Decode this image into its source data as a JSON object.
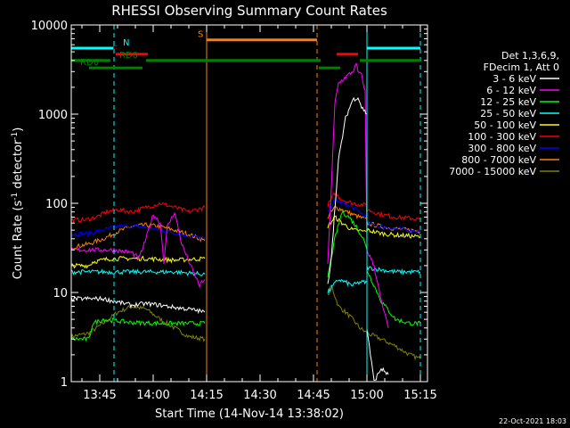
{
  "chart_data": {
    "type": "line",
    "title": "RHESSI Observing Summary Count Rates",
    "xlabel": "Start Time (14-Nov-14 13:38:02)",
    "ylabel_main": "Count Rate (s",
    "ylabel_sup1": "-1",
    "ylabel_mid": " detector",
    "ylabel_sup2": "-1",
    "ylabel_end": ")",
    "y_scale": "log",
    "ylim": [
      1,
      10000
    ],
    "xlim_minutes": [
      -1,
      99
    ],
    "x_ticks": [
      {
        "m": 7,
        "label": "13:45"
      },
      {
        "m": 22,
        "label": "14:00"
      },
      {
        "m": 37,
        "label": "14:15"
      },
      {
        "m": 52,
        "label": "14:30"
      },
      {
        "m": 67,
        "label": "14:45"
      },
      {
        "m": 82,
        "label": "15:00"
      },
      {
        "m": 97,
        "label": "15:15"
      }
    ],
    "y_ticks": [
      {
        "v": 1,
        "label": "1"
      },
      {
        "v": 10,
        "label": "10"
      },
      {
        "v": 100,
        "label": "100"
      },
      {
        "v": 1000,
        "label": "1000"
      },
      {
        "v": 10000,
        "label": "10000"
      }
    ],
    "legend_header": [
      "Det 1,3,6,9,",
      "FDecim 1, Att 0"
    ],
    "legend_placement": "right",
    "series": [
      {
        "name": "3 - 6 keV",
        "color": "#ffffff",
        "segments": [
          {
            "x": [
              -1,
              3,
              8,
              12,
              16,
              20,
              24,
              28,
              32,
              35,
              36.5
            ],
            "y": [
              8.5,
              8.5,
              8.5,
              7.8,
              7.2,
              7.5,
              7.2,
              6.8,
              6.5,
              6.2,
              6.0
            ]
          },
          {
            "x": [
              71,
              72,
              74,
              76,
              78,
              79.5,
              80.5,
              82
            ],
            "y": [
              12,
              25,
              300,
              900,
              1450,
              1550,
              1200,
              1000
            ]
          },
          {
            "x": [
              82,
              83,
              84,
              86,
              88
            ],
            "y": [
              4,
              2,
              1,
              1.4,
              1.2
            ]
          }
        ]
      },
      {
        "name": "6 - 12 keV",
        "color": "#ff00ff",
        "segments": [
          {
            "x": [
              -1,
              8,
              11,
              16,
              18,
              20,
              22,
              24,
              25,
              26,
              28,
              30,
              33,
              35,
              36.5
            ],
            "y": [
              30,
              30,
              30,
              28,
              24,
              40,
              75,
              60,
              22,
              55,
              80,
              35,
              18,
              12,
              14
            ]
          },
          {
            "x": [
              71,
              72,
              73,
              74,
              76,
              78,
              79,
              79.5,
              80.5,
              81.5,
              82
            ],
            "y": [
              20,
              150,
              1300,
              2200,
              2600,
              3000,
              3600,
              3000,
              2700,
              1800,
              30
            ]
          },
          {
            "x": [
              82,
              84,
              86,
              88
            ],
            "y": [
              30,
              20,
              8,
              4
            ]
          }
        ]
      },
      {
        "name": "12 - 25 keV",
        "color": "#00ff00",
        "segments": [
          {
            "x": [
              -1,
              4,
              5,
              8,
              16,
              24,
              32,
              36.5
            ],
            "y": [
              3,
              3,
              4.5,
              5,
              4.6,
              4.5,
              4.5,
              4.5
            ]
          },
          {
            "x": [
              71,
              73,
              75,
              77,
              79,
              81,
              82
            ],
            "y": [
              15,
              40,
              80,
              70,
              55,
              40,
              30
            ]
          },
          {
            "x": [
              82,
              86,
              90,
              94,
              97
            ],
            "y": [
              18,
              8,
              5,
              4.5,
              4.5
            ]
          }
        ]
      },
      {
        "name": "25 - 50 keV",
        "color": "#00ffff",
        "segments": [
          {
            "x": [
              -1,
              10,
              20,
              28,
              36.5
            ],
            "y": [
              17,
              17,
              17,
              17,
              16
            ]
          },
          {
            "x": [
              71,
              74,
              76,
              78,
              80,
              82
            ],
            "y": [
              10,
              14,
              13,
              12,
              13,
              13
            ]
          },
          {
            "x": [
              82,
              86,
              90,
              94,
              97
            ],
            "y": [
              19,
              18,
              17,
              17,
              17
            ]
          }
        ]
      },
      {
        "name": "50 - 100 keV",
        "color": "#ffff00",
        "segments": [
          {
            "x": [
              -1,
              4,
              5,
              10,
              20,
              28,
              36.5
            ],
            "y": [
              20,
              20,
              22,
              24,
              24,
              23,
              24
            ]
          },
          {
            "x": [
              71,
              73,
              75,
              78,
              82
            ],
            "y": [
              55,
              70,
              60,
              50,
              48
            ]
          },
          {
            "x": [
              82,
              86,
              90,
              94,
              97
            ],
            "y": [
              50,
              46,
              44,
              43,
              42
            ]
          }
        ]
      },
      {
        "name": "100 - 300 keV",
        "color": "#ff0000",
        "segments": [
          {
            "x": [
              -1,
              3,
              6,
              9,
              12,
              16,
              20,
              24,
              28,
              32,
              36.5
            ],
            "y": [
              65,
              65,
              70,
              80,
              85,
              80,
              90,
              100,
              90,
              80,
              90
            ]
          },
          {
            "x": [
              71,
              73,
              75,
              78,
              82
            ],
            "y": [
              95,
              130,
              110,
              100,
              95
            ]
          },
          {
            "x": [
              82,
              86,
              90,
              94,
              97
            ],
            "y": [
              85,
              75,
              70,
              68,
              66
            ]
          }
        ]
      },
      {
        "name": "300 - 800 keV",
        "color": "#0000ff",
        "segments": [
          {
            "x": [
              -1,
              4,
              8,
              12,
              18,
              24,
              30,
              36.5
            ],
            "y": [
              45,
              46,
              50,
              55,
              55,
              50,
              45,
              40
            ]
          },
          {
            "x": [
              71,
              73,
              75,
              78,
              82
            ],
            "y": [
              80,
              110,
              100,
              90,
              70
            ]
          },
          {
            "x": [
              82,
              86,
              90,
              94,
              97
            ],
            "y": [
              60,
              55,
              52,
              50,
              49
            ]
          }
        ]
      },
      {
        "name": "800 - 7000 keV",
        "color": "#ff8000",
        "segments": [
          {
            "x": [
              -1,
              4,
              8,
              12,
              16,
              20,
              24,
              28,
              32,
              36.5
            ],
            "y": [
              32,
              35,
              40,
              48,
              55,
              57,
              55,
              50,
              45,
              38
            ]
          },
          {
            "x": [
              71,
              73,
              75,
              78,
              82
            ],
            "y": [
              70,
              90,
              85,
              75,
              65
            ]
          },
          {
            "x": [
              82,
              86,
              90,
              94,
              97
            ],
            "y": [
              60,
              55,
              52,
              50,
              49
            ]
          }
        ]
      },
      {
        "name": "7000 - 15000 keV",
        "color": "#808000",
        "segments": [
          {
            "x": [
              -1,
              4,
              8,
              12,
              16,
              20,
              24,
              28,
              32,
              36.5
            ],
            "y": [
              3.2,
              3.5,
              4.5,
              6,
              7,
              6.5,
              5,
              4,
              3.2,
              3.0
            ]
          },
          {
            "x": [
              71,
              72,
              74,
              76,
              78,
              80,
              82
            ],
            "y": [
              9,
              12,
              7,
              6,
              5,
              4,
              3.5
            ]
          },
          {
            "x": [
              82,
              86,
              90,
              94,
              97
            ],
            "y": [
              3.5,
              3,
              2.5,
              2,
              1.8
            ]
          }
        ]
      }
    ],
    "state_bars": [
      {
        "label": "N",
        "color": "#00ffff",
        "y": 5500,
        "spans": [
          [
            -1,
            11
          ],
          [
            82,
            97
          ]
        ],
        "label_at": 13.5
      },
      {
        "label": "S",
        "color": "#ff8000",
        "y": 6800,
        "spans": [
          [
            37,
            68
          ]
        ],
        "label_at": 34.5
      },
      {
        "label": "F",
        "color": "#ff0000",
        "y": 4700,
        "spans": [
          [
            11.5,
            20.5
          ],
          [
            73.5,
            79.5
          ]
        ],
        "label_at": 10.5
      },
      {
        "label": "RD0",
        "color": "#008000",
        "y": 4000,
        "spans": [
          [
            -1,
            10
          ],
          [
            20,
            69
          ],
          [
            80,
            97
          ]
        ],
        "label_at": 12.5
      },
      {
        "label": "RD6",
        "color": "#008000",
        "y": 3300,
        "spans": [
          [
            4,
            19
          ],
          [
            68.5,
            74.5
          ]
        ],
        "label_at": 1.5
      }
    ],
    "vertical_lines": [
      {
        "x": 11,
        "color": "#00ffff",
        "style": "dashed"
      },
      {
        "x": 37,
        "color": "#ff8000",
        "style": "solid"
      },
      {
        "x": 68,
        "color": "#ff8000",
        "style": "dashed"
      },
      {
        "x": 82,
        "color": "#00ffff",
        "style": "solid"
      },
      {
        "x": 97,
        "color": "#00ffff",
        "style": "dashed"
      }
    ],
    "timestamp": "22-Oct-2021 18:03"
  }
}
